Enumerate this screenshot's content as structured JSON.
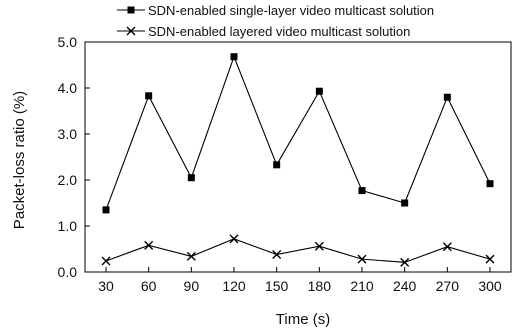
{
  "chart_data": {
    "type": "line",
    "x": [
      30,
      60,
      90,
      120,
      150,
      180,
      210,
      240,
      270,
      300
    ],
    "xticks": [
      "30",
      "60",
      "90",
      "120",
      "150",
      "180",
      "210",
      "240",
      "270",
      "300"
    ],
    "yticks": [
      "0.0",
      "1.0",
      "2.0",
      "3.0",
      "4.0",
      "5.0"
    ],
    "xlabel": "Time (s)",
    "ylabel": "Packet-loss ratio (%)",
    "ylim": [
      0,
      5
    ],
    "grid": false,
    "legend_position": "top",
    "series": [
      {
        "name": "SDN-enabled single-layer video multicast solution",
        "marker": "filled-square",
        "color": "#000000",
        "values": [
          1.35,
          3.83,
          2.05,
          4.68,
          2.33,
          3.93,
          1.77,
          1.5,
          3.8,
          1.92
        ]
      },
      {
        "name": "SDN-enabled layered video multicast solution",
        "marker": "x",
        "color": "#000000",
        "values": [
          0.24,
          0.58,
          0.34,
          0.72,
          0.38,
          0.56,
          0.28,
          0.21,
          0.55,
          0.28
        ]
      }
    ]
  }
}
